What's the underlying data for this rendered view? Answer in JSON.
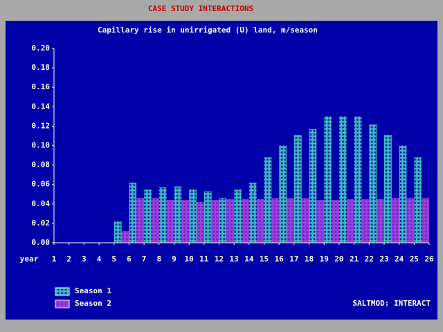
{
  "header": "CASE STUDY INTERACTIONS",
  "chart_data": {
    "type": "bar",
    "title": "Capillary rise in unirrigated (U) land, m/season",
    "x_label": "year",
    "x": [
      1,
      2,
      3,
      4,
      5,
      6,
      7,
      8,
      9,
      10,
      11,
      12,
      13,
      14,
      15,
      16,
      17,
      18,
      19,
      20,
      21,
      22,
      23,
      24,
      25
    ],
    "xlim": [
      1,
      26
    ],
    "xticks": [
      1,
      2,
      3,
      4,
      5,
      6,
      7,
      8,
      9,
      10,
      11,
      12,
      13,
      14,
      15,
      16,
      17,
      18,
      19,
      20,
      21,
      22,
      23,
      24,
      25,
      26
    ],
    "ylim": [
      0,
      0.2
    ],
    "yticks": [
      {
        "value": 0,
        "label": "0.00"
      },
      {
        "value": 0.02,
        "label": "0.02"
      },
      {
        "value": 0.04,
        "label": "0.04"
      },
      {
        "value": 0.06,
        "label": "0.06"
      },
      {
        "value": 0.08,
        "label": "0.08"
      },
      {
        "value": 0.1,
        "label": "0.10"
      },
      {
        "value": 0.12,
        "label": "0.12"
      },
      {
        "value": 0.14,
        "label": "0.14"
      },
      {
        "value": 0.16,
        "label": "0.16"
      },
      {
        "value": 0.18,
        "label": "0.18"
      },
      {
        "value": 0.2,
        "label": "0.20"
      }
    ],
    "series": [
      {
        "name": "Season 1",
        "color": "#40c0c0",
        "values": [
          0,
          0,
          0,
          0,
          0.022,
          0.062,
          0.055,
          0.057,
          0.058,
          0.055,
          0.053,
          0.046,
          0.055,
          0.062,
          0.088,
          0.1,
          0.111,
          0.117,
          0.13,
          0.13,
          0.13,
          0.122,
          0.111,
          0.1,
          0.088
        ]
      },
      {
        "name": "Season 2",
        "color": "#a040e0",
        "values": [
          0,
          0,
          0,
          0,
          0.012,
          0.046,
          0.046,
          0.044,
          0.044,
          0.042,
          0.044,
          0.045,
          0.045,
          0.045,
          0.046,
          0.046,
          0.046,
          0.044,
          0.044,
          0.045,
          0.045,
          0.045,
          0.046,
          0.046,
          0.046
        ]
      }
    ]
  },
  "footer": "SALTMOD: INTERACT"
}
